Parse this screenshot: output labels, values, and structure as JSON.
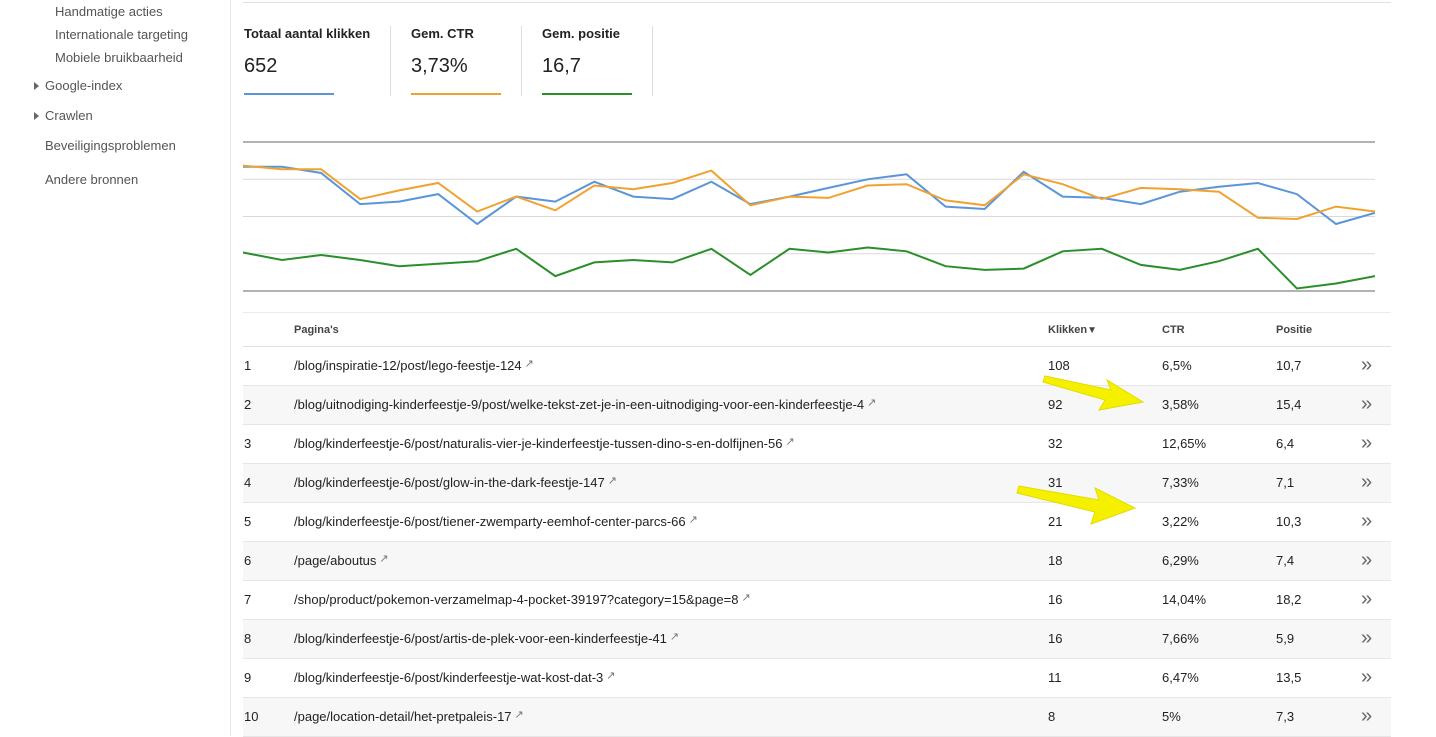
{
  "sidebar": {
    "sub_items": [
      {
        "label": "Handmatige acties"
      },
      {
        "label": "Internationale targeting"
      },
      {
        "label": "Mobiele bruikbaarheid"
      }
    ],
    "sections": [
      {
        "label": "Google-index",
        "expandable": true
      },
      {
        "label": "Crawlen",
        "expandable": true
      },
      {
        "label": "Beveiligingsproblemen",
        "expandable": false
      },
      {
        "label": "Andere bronnen",
        "expandable": false
      }
    ]
  },
  "metrics": [
    {
      "label": "Totaal aantal klikken",
      "value": "652",
      "color": "#5b95d9"
    },
    {
      "label": "Gem. CTR",
      "value": "3,73%",
      "color": "#f0a231"
    },
    {
      "label": "Gem. positie",
      "value": "16,7",
      "color": "#2a8f2a"
    }
  ],
  "chart_data": {
    "type": "line",
    "grid": true,
    "series": [
      {
        "color": "#5b95d9",
        "values": [
          20,
          20,
          25,
          50,
          48,
          42,
          66,
          44,
          48,
          32,
          44,
          46,
          32,
          50,
          44,
          37,
          30,
          26,
          52,
          54,
          24,
          44,
          45,
          50,
          40,
          36,
          33,
          42,
          66,
          57
        ]
      },
      {
        "color": "#f0a231",
        "values": [
          19,
          22,
          22,
          46,
          39,
          33,
          56,
          44,
          55,
          35,
          38,
          33,
          23,
          51,
          44,
          45,
          35,
          34,
          47,
          51,
          26,
          34,
          46,
          37,
          38,
          40,
          61,
          62,
          52,
          56
        ]
      },
      {
        "color": "#2a8f2a",
        "values": [
          89,
          95,
          91,
          95,
          100,
          98,
          96,
          86,
          108,
          97,
          95,
          97,
          86,
          107,
          86,
          89,
          85,
          88,
          100,
          103,
          102,
          88,
          86,
          99,
          103,
          96,
          86,
          118,
          114,
          108
        ]
      }
    ]
  },
  "table": {
    "headers": {
      "page": "Pagina's",
      "clicks": "Klikken",
      "sort_indicator": "▼",
      "ctr": "CTR",
      "position": "Positie"
    },
    "rows": [
      {
        "idx": "1",
        "page": "/blog/inspiratie-12/post/lego-feestje-124",
        "clicks": "108",
        "ctr": "6,5%",
        "position": "10,7"
      },
      {
        "idx": "2",
        "page": "/blog/uitnodiging-kinderfeestje-9/post/welke-tekst-zet-je-in-een-uitnodiging-voor-een-kinderfeestje-4",
        "clicks": "92",
        "ctr": "3,58%",
        "position": "15,4"
      },
      {
        "idx": "3",
        "page": "/blog/kinderfeestje-6/post/naturalis-vier-je-kinderfeestje-tussen-dino-s-en-dolfijnen-56",
        "clicks": "32",
        "ctr": "12,65%",
        "position": "6,4"
      },
      {
        "idx": "4",
        "page": "/blog/kinderfeestje-6/post/glow-in-the-dark-feestje-147",
        "clicks": "31",
        "ctr": "7,33%",
        "position": "7,1"
      },
      {
        "idx": "5",
        "page": "/blog/kinderfeestje-6/post/tiener-zwemparty-eemhof-center-parcs-66",
        "clicks": "21",
        "ctr": "3,22%",
        "position": "10,3"
      },
      {
        "idx": "6",
        "page": "/page/aboutus",
        "clicks": "18",
        "ctr": "6,29%",
        "position": "7,4"
      },
      {
        "idx": "7",
        "page": "/shop/product/pokemon-verzamelmap-4-pocket-39197?category=15&page=8",
        "clicks": "16",
        "ctr": "14,04%",
        "position": "18,2"
      },
      {
        "idx": "8",
        "page": "/blog/kinderfeestje-6/post/artis-de-plek-voor-een-kinderfeestje-41",
        "clicks": "16",
        "ctr": "7,66%",
        "position": "5,9"
      },
      {
        "idx": "9",
        "page": "/blog/kinderfeestje-6/post/kinderfeestje-wat-kost-dat-3",
        "clicks": "11",
        "ctr": "6,47%",
        "position": "13,5"
      },
      {
        "idx": "10",
        "page": "/page/location-detail/het-pretpaleis-17",
        "clicks": "8",
        "ctr": "5%",
        "position": "7,3"
      }
    ],
    "external_icon": "↗",
    "details_icon": "»"
  },
  "annotations": {
    "arrow_color": "#f5f000",
    "highlight_rows": [
      2,
      5
    ]
  }
}
